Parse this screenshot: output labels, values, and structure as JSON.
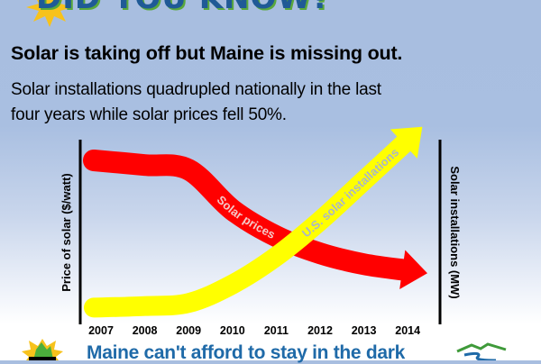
{
  "banner": "DID YOU KNOW?",
  "title": "Solar is taking off but Maine is missing out.",
  "subtitle_lines": [
    "Solar installations quadrupled nationally in the last",
    "four years while solar prices fell 50%."
  ],
  "footer_text": "Maine can't afford to stay in the dark",
  "colors": {
    "price": "#ff0000",
    "installs": "#ffff00",
    "banner": "#1f5a96",
    "footer": "#1f6aa8"
  },
  "chart_data": {
    "type": "line",
    "categories": [
      "2007",
      "2008",
      "2009",
      "2010",
      "2011",
      "2012",
      "2013",
      "2014"
    ],
    "ylabel_left": "Price of solar ($/watt)",
    "ylabel_right": "Solar installations (MW)",
    "ylim": [
      0,
      120
    ],
    "note": "relative trend, no numeric scale shown",
    "series": [
      {
        "name": "Solar prices",
        "axis": "left",
        "color": "#ff0000",
        "values": [
          100,
          97,
          94,
          68,
          51,
          40,
          33,
          29
        ]
      },
      {
        "name": "U.S. solar installations",
        "axis": "right",
        "color": "#ffff00",
        "values": [
          5,
          6,
          8,
          20,
          38,
          61,
          87,
          113
        ]
      }
    ]
  }
}
